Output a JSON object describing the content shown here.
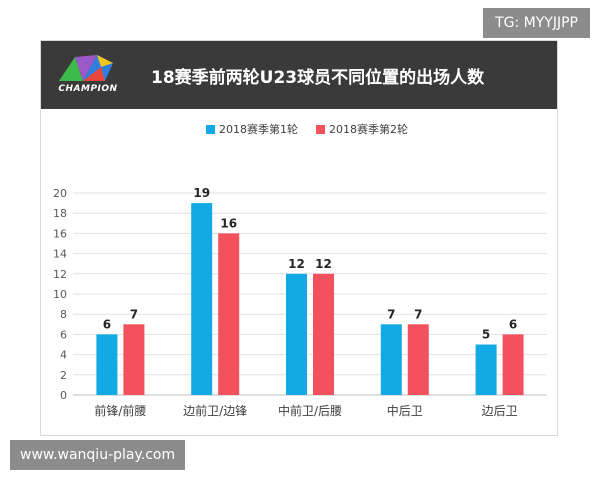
{
  "watermarks": {
    "top": "TG: MYYJJPP",
    "bottom": "www.wanqiu-play.com"
  },
  "header": {
    "logo_text": "CHAMPION",
    "title": "18赛季前两轮U23球员不同位置的出场人数"
  },
  "colors": {
    "series1": "#12aae4",
    "series2": "#f4515f",
    "header_bg": "#3a3a3a",
    "grid": "#e2e2e2"
  },
  "chart_data": {
    "type": "bar",
    "title": "18赛季前两轮U23球员不同位置的出场人数",
    "categories": [
      "前锋/前腰",
      "边前卫/边锋",
      "中前卫/后腰",
      "中后卫",
      "边后卫"
    ],
    "series": [
      {
        "name": "2018赛季第1轮",
        "values": [
          6,
          19,
          12,
          7,
          5
        ]
      },
      {
        "name": "2018赛季第2轮",
        "values": [
          7,
          16,
          12,
          7,
          6
        ]
      }
    ],
    "ylim": [
      0,
      20
    ],
    "yticks": [
      0,
      2,
      4,
      6,
      8,
      10,
      12,
      14,
      16,
      18,
      20
    ],
    "xlabel": "",
    "ylabel": "",
    "grid": true,
    "legend_position": "top",
    "data_labels": true
  }
}
